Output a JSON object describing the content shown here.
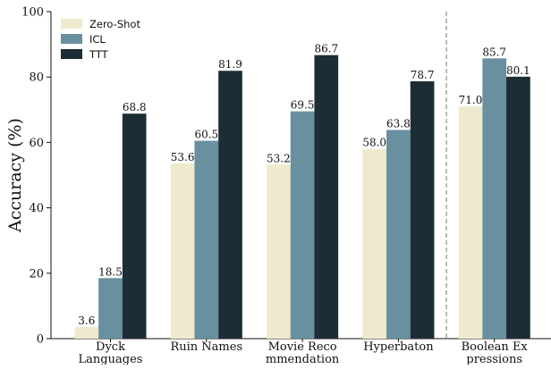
{
  "chart_data": {
    "type": "bar",
    "title": "",
    "xlabel": "",
    "ylabel": "Accuracy (%)",
    "ylim": [
      0,
      100
    ],
    "yticks": [
      0,
      20,
      40,
      60,
      80,
      100
    ],
    "grid": false,
    "legend_position": "top-left",
    "categories": [
      [
        "Dyck",
        "Languages"
      ],
      [
        "Ruin Names"
      ],
      [
        "Movie Reco",
        "mmendation"
      ],
      [
        "Hyperbaton"
      ],
      [
        "Boolean Ex",
        "pressions"
      ]
    ],
    "separator_before_category": 4,
    "series": [
      {
        "name": "Zero-Shot",
        "color": "#efe9cd",
        "values": [
          3.6,
          53.6,
          53.2,
          58.0,
          71.0
        ],
        "labels": [
          "3.6",
          "53.6",
          "53.2",
          "58.0",
          "71.0"
        ]
      },
      {
        "name": "ICL",
        "color": "#68909f",
        "values": [
          18.5,
          60.5,
          69.5,
          63.8,
          85.7
        ],
        "labels": [
          "18.5",
          "60.5",
          "69.5",
          "63.8",
          "85.7"
        ]
      },
      {
        "name": "TTT",
        "color": "#1d2d35",
        "values": [
          68.8,
          81.9,
          86.7,
          78.7,
          80.1
        ],
        "labels": [
          "68.8",
          "81.9",
          "86.7",
          "78.7",
          "80.1"
        ]
      }
    ]
  }
}
